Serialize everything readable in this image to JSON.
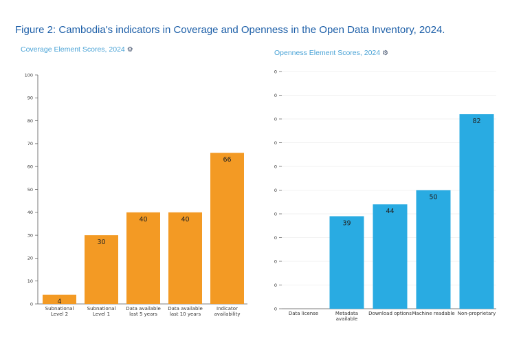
{
  "figure_title": "Figure 2: Cambodia's indicators in Coverage and Openness in the Open Data Inventory, 2024.",
  "icons": {
    "settings": "gear-icon"
  },
  "colors": {
    "coverage_bar": "#f39a24",
    "openness_bar": "#29abe2",
    "title": "#1d5fa8"
  },
  "chart_data": [
    {
      "type": "bar",
      "title": "Coverage Element Scores, 2024",
      "categories": [
        [
          "Subnational",
          "Level 2"
        ],
        [
          "Subnational",
          "Level 1"
        ],
        [
          "Data available",
          "last 5 years"
        ],
        [
          "Data available",
          "last 10 years"
        ],
        [
          "Indicator",
          "availability"
        ]
      ],
      "values": [
        4,
        30,
        40,
        40,
        66
      ],
      "data_labels": [
        "4",
        "30",
        "40",
        "40",
        "66"
      ],
      "yticks": [
        "0",
        "10",
        "20",
        "30",
        "40",
        "50",
        "60",
        "70",
        "80",
        "90",
        "100"
      ],
      "ylim": [
        0,
        100
      ],
      "grid": false,
      "color": "#f39a24"
    },
    {
      "type": "bar",
      "title": "Openness Element Scores, 2024",
      "categories": [
        [
          "Data license"
        ],
        [
          "Metadata",
          "available"
        ],
        [
          "Download options"
        ],
        [
          "Machine readable"
        ],
        [
          "Non-proprietary"
        ]
      ],
      "values": [
        0,
        39,
        44,
        50,
        82
      ],
      "data_labels": [
        "",
        "39",
        "44",
        "50",
        "82"
      ],
      "yticks": [
        "0",
        "0",
        "0",
        "0",
        "0",
        "0",
        "0",
        "0",
        "0",
        "0",
        "0"
      ],
      "ylim": [
        0,
        100
      ],
      "grid": true,
      "color": "#29abe2"
    }
  ]
}
